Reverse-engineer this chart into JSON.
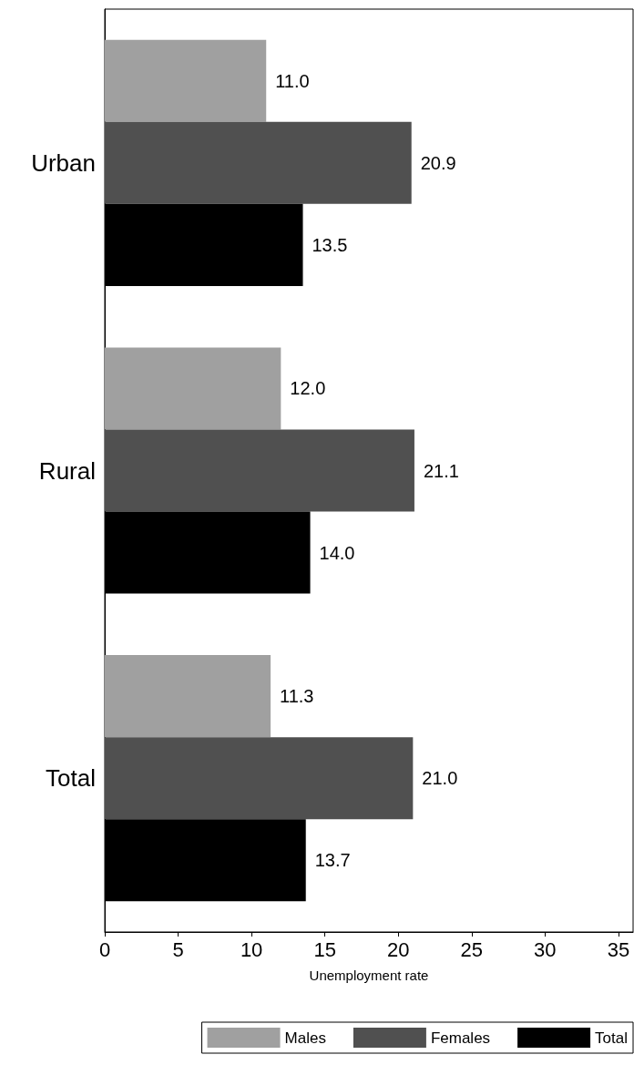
{
  "chart_data": {
    "type": "bar",
    "orientation": "horizontal",
    "categories": [
      "Urban",
      "Rural",
      "Total"
    ],
    "xlabel": "Unemployment rate",
    "xlim": [
      0,
      36
    ],
    "xticks": [
      0,
      5,
      10,
      15,
      20,
      25,
      30,
      35
    ],
    "series": [
      {
        "name": "Males",
        "color": "#a0a0a0",
        "values": [
          11.0,
          12.0,
          11.3
        ],
        "value_labels": [
          "11.0",
          "12.0",
          "11.3"
        ]
      },
      {
        "name": "Females",
        "color": "#505050",
        "values": [
          20.9,
          21.1,
          21.0
        ],
        "value_labels": [
          "20.9",
          "21.1",
          "21.0"
        ]
      },
      {
        "name": "Total",
        "color": "#000000",
        "values": [
          13.5,
          14.0,
          13.7
        ],
        "value_labels": [
          "13.5",
          "14.0",
          "13.7"
        ]
      }
    ],
    "grid": false,
    "legend": "bottom"
  }
}
